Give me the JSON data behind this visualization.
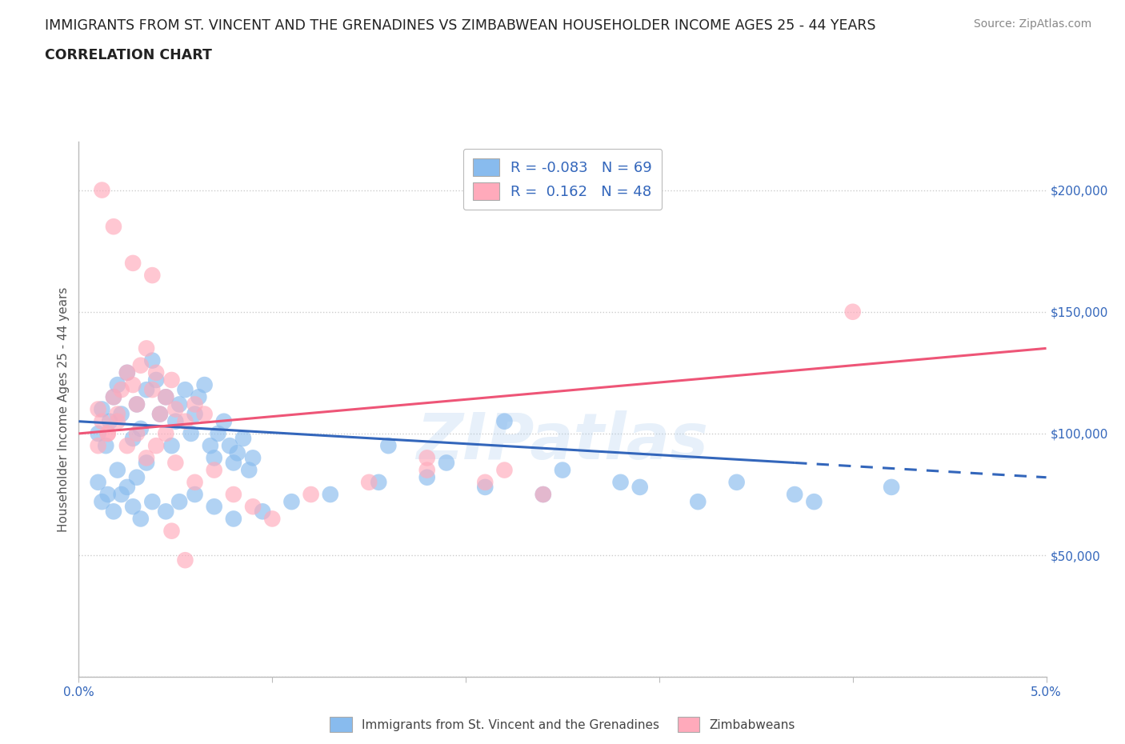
{
  "title_line1": "IMMIGRANTS FROM ST. VINCENT AND THE GRENADINES VS ZIMBABWEAN HOUSEHOLDER INCOME AGES 25 - 44 YEARS",
  "title_line2": "CORRELATION CHART",
  "source_text": "Source: ZipAtlas.com",
  "ylabel": "Householder Income Ages 25 - 44 years",
  "xlim": [
    0.0,
    0.05
  ],
  "ylim": [
    0,
    220000
  ],
  "bg_color": "#ffffff",
  "grid_color": "#cccccc",
  "watermark": "ZIPatlas",
  "blue_color": "#88bbee",
  "pink_color": "#ffaabb",
  "trend_blue": "#3366bb",
  "trend_pink": "#ee5577",
  "text_blue": "#3366bb",
  "axis_color": "#bbbbbb",
  "blue_scatter_x": [
    0.001,
    0.0012,
    0.0014,
    0.0016,
    0.0018,
    0.002,
    0.0022,
    0.0025,
    0.0028,
    0.003,
    0.0032,
    0.0035,
    0.0038,
    0.004,
    0.0042,
    0.0045,
    0.0048,
    0.005,
    0.0052,
    0.0055,
    0.0058,
    0.006,
    0.0062,
    0.0065,
    0.0068,
    0.007,
    0.0072,
    0.0075,
    0.0078,
    0.008,
    0.0082,
    0.0085,
    0.0088,
    0.009,
    0.001,
    0.0015,
    0.002,
    0.0025,
    0.003,
    0.0035,
    0.0012,
    0.0018,
    0.0022,
    0.0028,
    0.0032,
    0.0038,
    0.0045,
    0.0052,
    0.006,
    0.007,
    0.008,
    0.0095,
    0.011,
    0.013,
    0.0155,
    0.018,
    0.021,
    0.024,
    0.028,
    0.032,
    0.037,
    0.042,
    0.034,
    0.038,
    0.025,
    0.029,
    0.016,
    0.019,
    0.022
  ],
  "blue_scatter_y": [
    100000,
    110000,
    95000,
    105000,
    115000,
    120000,
    108000,
    125000,
    98000,
    112000,
    102000,
    118000,
    130000,
    122000,
    108000,
    115000,
    95000,
    105000,
    112000,
    118000,
    100000,
    108000,
    115000,
    120000,
    95000,
    90000,
    100000,
    105000,
    95000,
    88000,
    92000,
    98000,
    85000,
    90000,
    80000,
    75000,
    85000,
    78000,
    82000,
    88000,
    72000,
    68000,
    75000,
    70000,
    65000,
    72000,
    68000,
    72000,
    75000,
    70000,
    65000,
    68000,
    72000,
    75000,
    80000,
    82000,
    78000,
    75000,
    80000,
    72000,
    75000,
    78000,
    80000,
    72000,
    85000,
    78000,
    95000,
    88000,
    105000
  ],
  "pink_scatter_x": [
    0.001,
    0.0012,
    0.0015,
    0.0018,
    0.002,
    0.0022,
    0.0025,
    0.0028,
    0.003,
    0.0032,
    0.0035,
    0.0038,
    0.004,
    0.0042,
    0.0045,
    0.0048,
    0.005,
    0.0055,
    0.006,
    0.0065,
    0.001,
    0.0015,
    0.002,
    0.0025,
    0.003,
    0.0035,
    0.004,
    0.0045,
    0.005,
    0.006,
    0.007,
    0.008,
    0.009,
    0.01,
    0.012,
    0.015,
    0.018,
    0.021,
    0.024,
    0.018,
    0.022,
    0.0012,
    0.0018,
    0.0028,
    0.0038,
    0.0048,
    0.0055,
    0.04
  ],
  "pink_scatter_y": [
    110000,
    105000,
    100000,
    115000,
    108000,
    118000,
    125000,
    120000,
    112000,
    128000,
    135000,
    118000,
    125000,
    108000,
    115000,
    122000,
    110000,
    105000,
    112000,
    108000,
    95000,
    100000,
    105000,
    95000,
    100000,
    90000,
    95000,
    100000,
    88000,
    80000,
    85000,
    75000,
    70000,
    65000,
    75000,
    80000,
    85000,
    80000,
    75000,
    90000,
    85000,
    200000,
    185000,
    170000,
    165000,
    60000,
    48000,
    150000
  ],
  "blue_trend": [
    0.0,
    105000,
    0.037,
    88000
  ],
  "blue_dash": [
    0.037,
    88000,
    0.05,
    82000
  ],
  "pink_trend": [
    0.0,
    100000,
    0.05,
    135000
  ],
  "figsize": [
    14.06,
    9.3
  ],
  "dpi": 100
}
